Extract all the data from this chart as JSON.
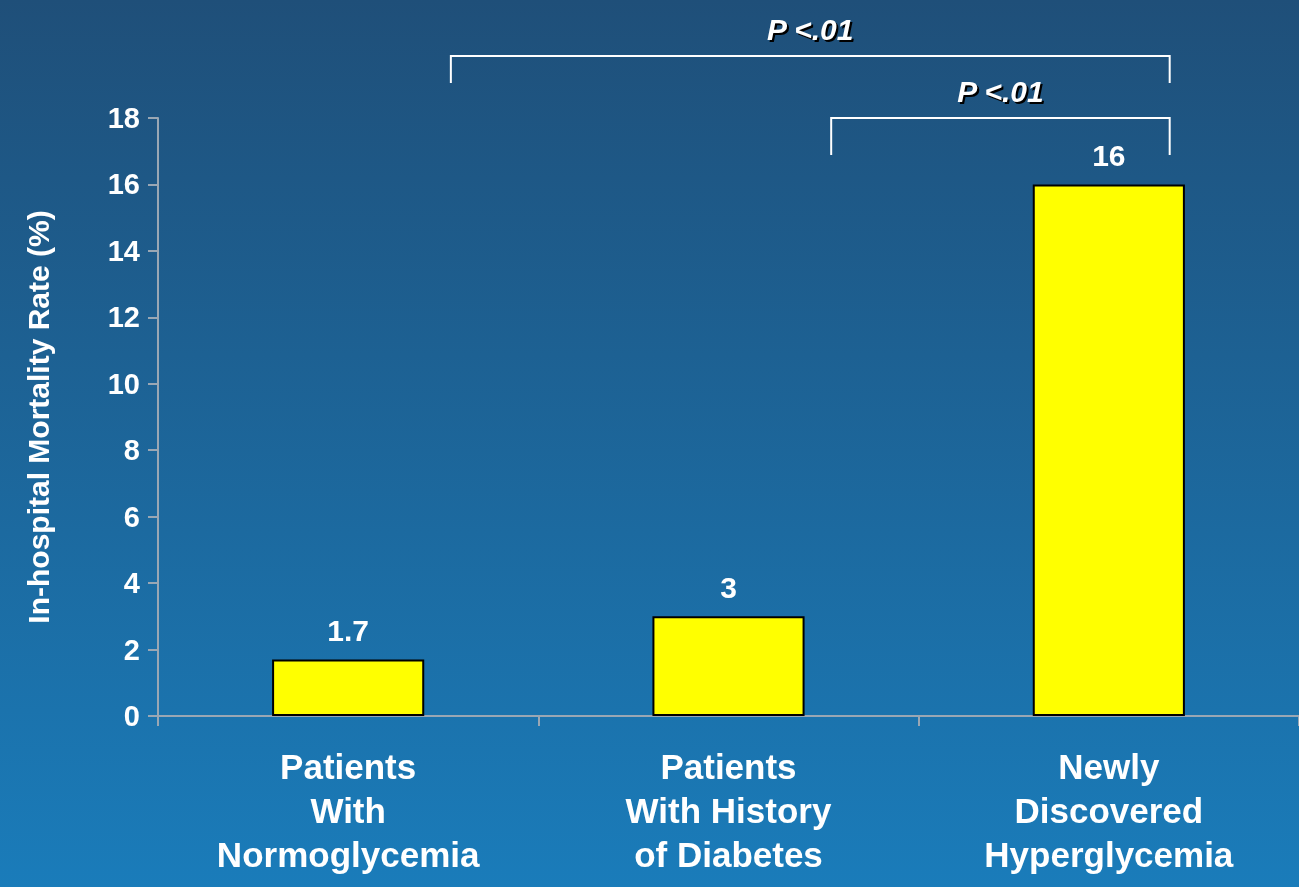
{
  "chart_data": {
    "type": "bar",
    "ylabel": "In-hospital Mortality Rate (%)",
    "categories": [
      "Patients\nWith\nNormoglycemia",
      "Patients\nWith History\nof Diabetes",
      "Newly\nDiscovered\nHyperglycemia"
    ],
    "values": [
      1.7,
      3,
      16
    ],
    "color": "#ffff00",
    "data_labels": true,
    "ylim": [
      0,
      18
    ],
    "yticks": [
      0,
      2,
      4,
      6,
      8,
      10,
      12,
      14,
      16,
      18
    ],
    "annotations": [
      "P <.01",
      "P <.01"
    ]
  }
}
